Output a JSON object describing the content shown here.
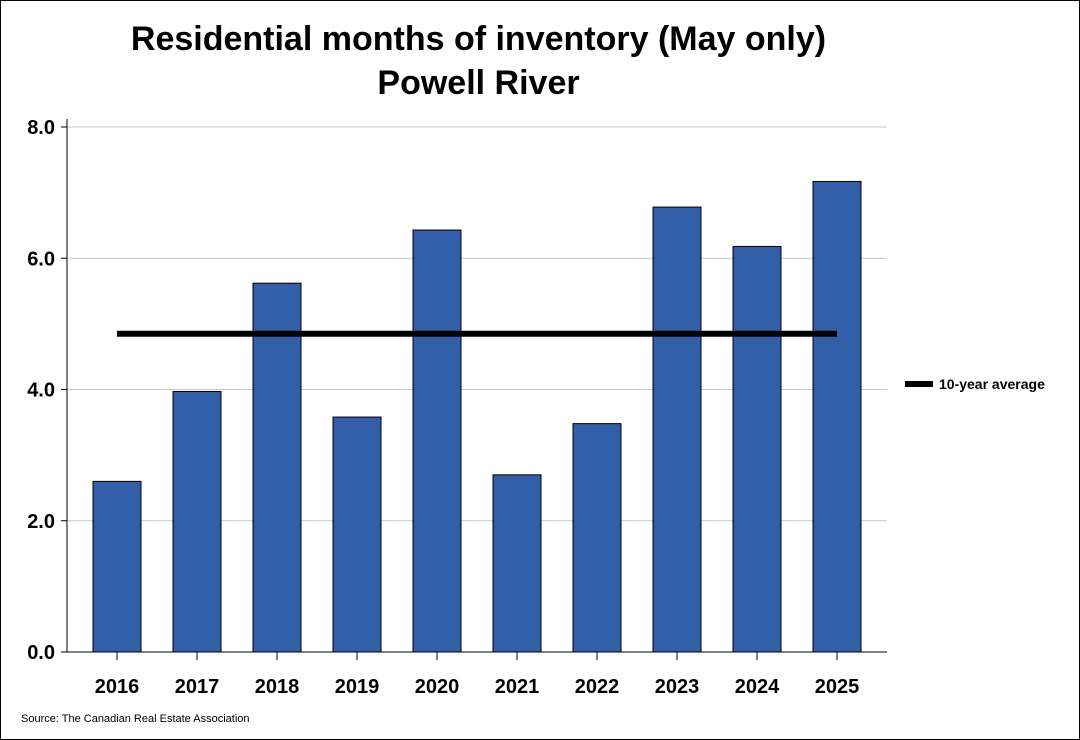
{
  "chart_data": {
    "type": "bar",
    "title": "Residential months of inventory (May only)",
    "subtitle": "Powell River",
    "categories": [
      "2016",
      "2017",
      "2018",
      "2019",
      "2020",
      "2021",
      "2022",
      "2023",
      "2024",
      "2025"
    ],
    "values": [
      2.6,
      3.97,
      5.62,
      3.58,
      6.43,
      2.7,
      3.48,
      6.78,
      6.18,
      7.17
    ],
    "reference_line": {
      "label": "10-year average",
      "value": 4.85
    },
    "ylim": [
      0,
      8
    ],
    "yticks": [
      "0.0",
      "2.0",
      "4.0",
      "6.0",
      "8.0"
    ],
    "grid": true,
    "legend_position": "right",
    "colors": {
      "bar": "#335ea8",
      "bar_edge": "#000000",
      "average_line": "#000000",
      "grid": "#c8c8c8"
    }
  },
  "source": "Source: The Canadian Real Estate Association"
}
